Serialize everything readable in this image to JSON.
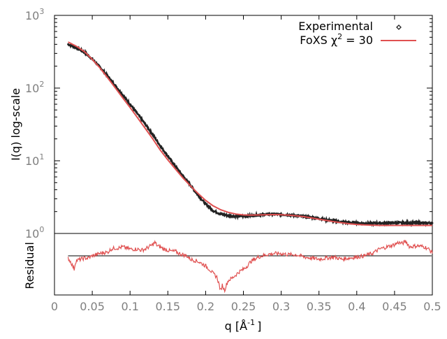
{
  "chart_data": {
    "type": "line",
    "colors": {
      "experimental": "#222222",
      "fit": "#e05050",
      "residual": "#e05050",
      "frame": "#000000",
      "tick_label": "#7f7f7f",
      "zero_line": "#000000"
    },
    "legend": {
      "placement": "top-right",
      "entries": [
        {
          "key": "experimental",
          "label": "Experimental"
        },
        {
          "key": "fit",
          "label_main": "FoXS χ",
          "label_sup": "2",
          "label_tail": " = 30"
        }
      ]
    },
    "main_panel": {
      "ylabel": "I(q) log-scale",
      "yscale": "log",
      "ylim": [
        1,
        1000
      ],
      "yticks": [
        {
          "value": 1,
          "base": "10",
          "exp": "0"
        },
        {
          "value": 10,
          "base": "10",
          "exp": "1"
        },
        {
          "value": 100,
          "base": "10",
          "exp": "2"
        },
        {
          "value": 1000,
          "base": "10",
          "exp": "3"
        }
      ],
      "series": [
        {
          "key": "experimental",
          "style": "points",
          "x": [
            0.018,
            0.025,
            0.03,
            0.04,
            0.05,
            0.06,
            0.07,
            0.08,
            0.09,
            0.1,
            0.11,
            0.12,
            0.13,
            0.14,
            0.15,
            0.16,
            0.17,
            0.18,
            0.19,
            0.2,
            0.21,
            0.22,
            0.23,
            0.24,
            0.25,
            0.26,
            0.27,
            0.28,
            0.29,
            0.3,
            0.31,
            0.32,
            0.33,
            0.34,
            0.35,
            0.36,
            0.37,
            0.38,
            0.39,
            0.4,
            0.41,
            0.42,
            0.43,
            0.44,
            0.45,
            0.46,
            0.47,
            0.48,
            0.49,
            0.5
          ],
          "y": [
            400,
            375,
            355,
            310,
            250,
            195,
            148,
            110,
            81,
            60,
            44,
            32,
            23,
            16,
            11.6,
            8.4,
            6.2,
            4.6,
            3.35,
            2.55,
            2.05,
            1.85,
            1.76,
            1.73,
            1.73,
            1.76,
            1.8,
            1.83,
            1.84,
            1.83,
            1.8,
            1.76,
            1.71,
            1.66,
            1.6,
            1.54,
            1.49,
            1.44,
            1.41,
            1.39,
            1.38,
            1.38,
            1.39,
            1.39,
            1.4,
            1.4,
            1.4,
            1.4,
            1.39,
            1.39
          ]
        },
        {
          "key": "fit",
          "style": "line",
          "x": [
            0.018,
            0.025,
            0.03,
            0.04,
            0.05,
            0.06,
            0.07,
            0.08,
            0.09,
            0.1,
            0.11,
            0.12,
            0.13,
            0.14,
            0.15,
            0.16,
            0.17,
            0.18,
            0.19,
            0.2,
            0.21,
            0.22,
            0.23,
            0.24,
            0.25,
            0.26,
            0.27,
            0.28,
            0.29,
            0.3,
            0.31,
            0.32,
            0.33,
            0.34,
            0.35,
            0.36,
            0.37,
            0.38,
            0.39,
            0.4,
            0.41,
            0.42,
            0.43,
            0.44,
            0.45,
            0.46,
            0.47,
            0.48,
            0.49,
            0.5
          ],
          "y": [
            430,
            395,
            370,
            315,
            248,
            190,
            140,
            102,
            74,
            54,
            39,
            28,
            20,
            14,
            10.3,
            7.7,
            5.8,
            4.5,
            3.55,
            2.85,
            2.4,
            2.12,
            1.95,
            1.85,
            1.8,
            1.79,
            1.8,
            1.81,
            1.82,
            1.81,
            1.79,
            1.75,
            1.7,
            1.64,
            1.57,
            1.51,
            1.45,
            1.4,
            1.36,
            1.33,
            1.31,
            1.3,
            1.29,
            1.29,
            1.29,
            1.29,
            1.29,
            1.29,
            1.29,
            1.29
          ]
        }
      ]
    },
    "residual_panel": {
      "ylabel": "Residual",
      "zero": 0,
      "ylim": [
        -3.5,
        2.0
      ],
      "series": [
        {
          "key": "residual",
          "style": "line",
          "x": [
            0.018,
            0.022,
            0.026,
            0.028,
            0.03,
            0.035,
            0.04,
            0.045,
            0.05,
            0.055,
            0.06,
            0.065,
            0.07,
            0.075,
            0.08,
            0.085,
            0.09,
            0.095,
            0.1,
            0.105,
            0.11,
            0.115,
            0.12,
            0.125,
            0.13,
            0.133,
            0.136,
            0.14,
            0.145,
            0.15,
            0.155,
            0.16,
            0.165,
            0.17,
            0.175,
            0.18,
            0.185,
            0.19,
            0.195,
            0.2,
            0.205,
            0.21,
            0.215,
            0.218,
            0.22,
            0.222,
            0.225,
            0.228,
            0.23,
            0.235,
            0.24,
            0.245,
            0.25,
            0.255,
            0.26,
            0.265,
            0.27,
            0.28,
            0.29,
            0.3,
            0.31,
            0.32,
            0.33,
            0.34,
            0.35,
            0.36,
            0.37,
            0.38,
            0.39,
            0.4,
            0.41,
            0.42,
            0.425,
            0.43,
            0.44,
            0.45,
            0.455,
            0.46,
            0.465,
            0.47,
            0.48,
            0.49,
            0.495,
            0.5
          ],
          "y": [
            -0.2,
            -0.6,
            -1.2,
            -0.5,
            -0.4,
            -0.3,
            -0.2,
            -0.2,
            0.0,
            0.1,
            0.2,
            0.3,
            0.3,
            0.6,
            0.7,
            0.7,
            0.8,
            0.7,
            0.6,
            0.6,
            0.6,
            0.5,
            0.6,
            0.8,
            1.0,
            1.2,
            0.9,
            0.8,
            0.6,
            0.5,
            0.4,
            0.4,
            0.2,
            0.1,
            0.0,
            -0.3,
            -0.4,
            -0.5,
            -0.7,
            -0.9,
            -1.2,
            -1.6,
            -1.9,
            -2.6,
            -3.2,
            -2.6,
            -3.1,
            -2.5,
            -2.2,
            -2.0,
            -1.7,
            -1.4,
            -1.2,
            -0.9,
            -0.5,
            -0.3,
            -0.1,
            0.1,
            0.2,
            0.2,
            0.1,
            0.1,
            -0.1,
            -0.2,
            -0.3,
            -0.2,
            -0.1,
            -0.3,
            -0.2,
            -0.1,
            0.0,
            0.2,
            0.4,
            0.6,
            0.8,
            1.0,
            1.2,
            1.1,
            1.3,
            0.8,
            0.9,
            0.8,
            0.6,
            0.3
          ]
        }
      ]
    },
    "xaxis": {
      "label_main": "q [Å",
      "label_sup": "-1",
      "label_tail": "]",
      "xlim": [
        0,
        0.5
      ],
      "ticks": [
        {
          "value": 0,
          "label": "0"
        },
        {
          "value": 0.05,
          "label": "0.05"
        },
        {
          "value": 0.1,
          "label": "0.1"
        },
        {
          "value": 0.15,
          "label": "0.15"
        },
        {
          "value": 0.2,
          "label": "0.2"
        },
        {
          "value": 0.25,
          "label": "0.25"
        },
        {
          "value": 0.3,
          "label": "0.3"
        },
        {
          "value": 0.35,
          "label": "0.35"
        },
        {
          "value": 0.4,
          "label": "0.4"
        },
        {
          "value": 0.45,
          "label": "0.45"
        },
        {
          "value": 0.5,
          "label": "0.5"
        }
      ]
    }
  }
}
